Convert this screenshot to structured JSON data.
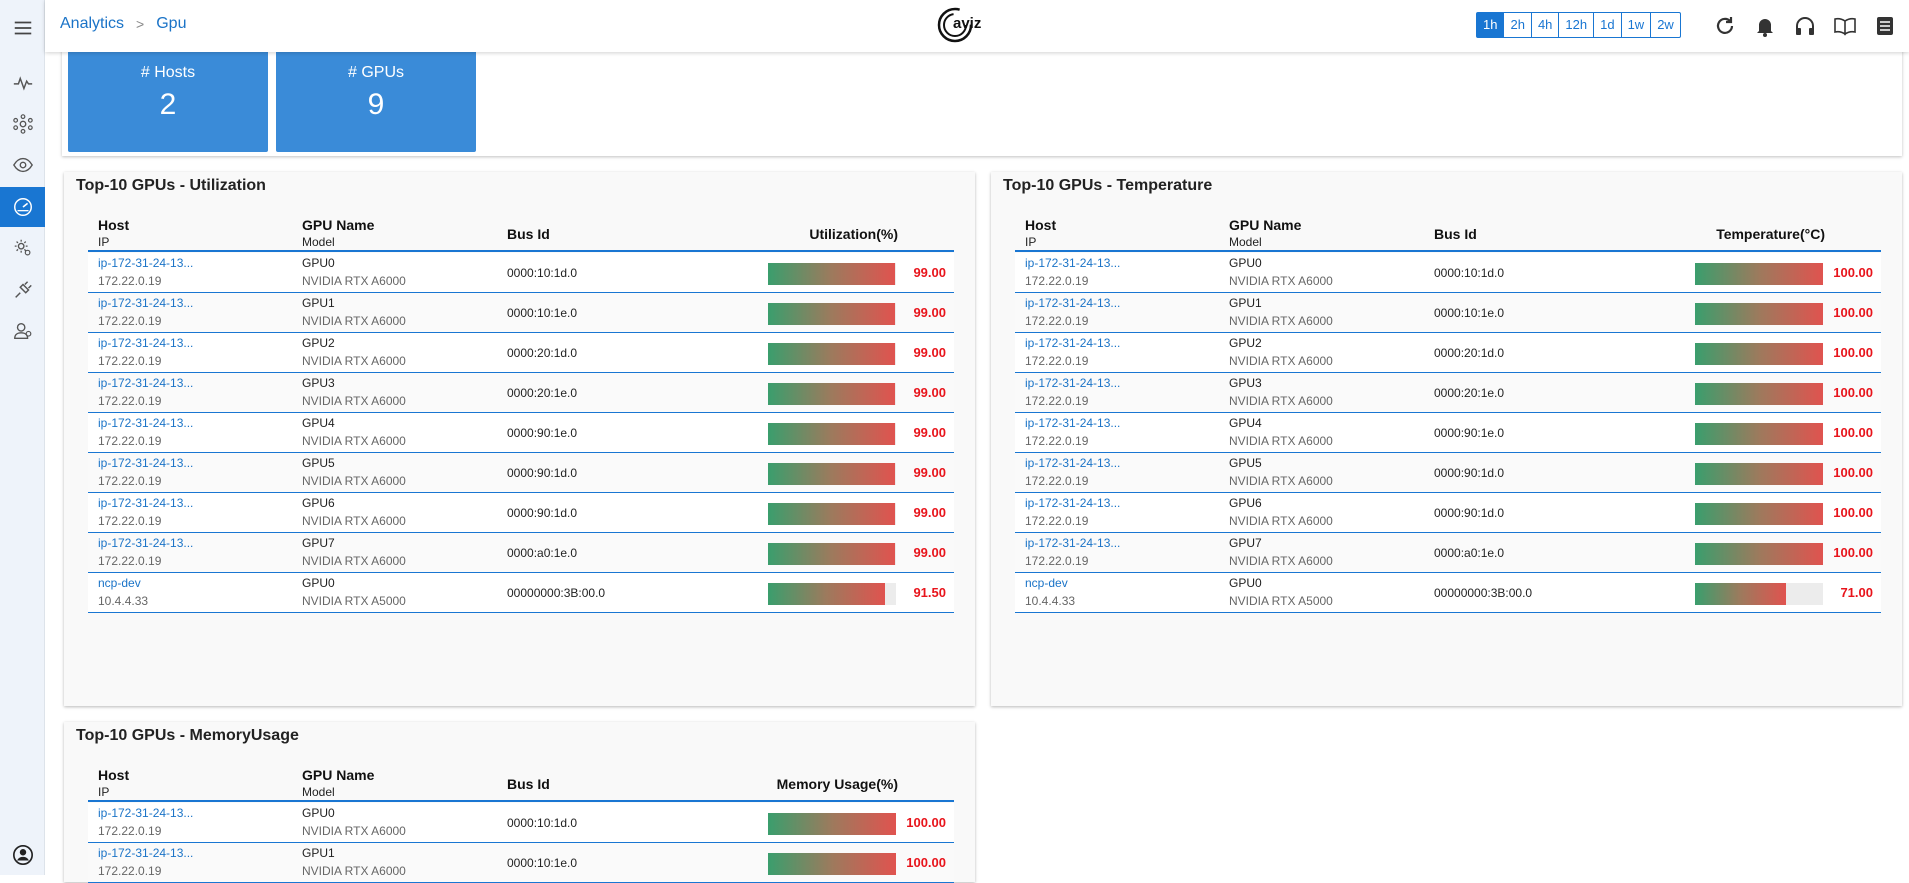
{
  "breadcrumb": {
    "parent": "Analytics",
    "separator": ">",
    "current": "Gpu"
  },
  "logo_text": "aviz",
  "time_ranges": [
    {
      "label": "1h",
      "selected": true
    },
    {
      "label": "2h",
      "selected": false
    },
    {
      "label": "4h",
      "selected": false
    },
    {
      "label": "12h",
      "selected": false
    },
    {
      "label": "1d",
      "selected": false
    },
    {
      "label": "1w",
      "selected": false
    },
    {
      "label": "2w",
      "selected": false
    }
  ],
  "header_icons": [
    "refresh-icon",
    "bell-icon",
    "headphones-icon",
    "book-icon",
    "document-icon"
  ],
  "sidebar_icons": [
    "menu-icon",
    "pulse-icon",
    "network-icon",
    "eye-icon",
    "dashboard-icon",
    "settings-icon",
    "plug-icon",
    "users-icon",
    "account-icon"
  ],
  "stats": [
    {
      "label": "# Hosts",
      "value": "2"
    },
    {
      "label": "# GPUs",
      "value": "9"
    }
  ],
  "columns": {
    "host": "Host",
    "ip": "IP",
    "gpu_name": "GPU Name",
    "model": "Model",
    "bus_id": "Bus Id"
  },
  "colors": {
    "accent": "#1976d2",
    "stat_bg": "#3a8bd8",
    "value_red": "#e8141b"
  },
  "tables": [
    {
      "title": "Top-10 GPUs - Utilization",
      "metric_label": "Utilization(%)",
      "rows": [
        {
          "host": "ip-172-31-24-13...",
          "ip": "172.22.0.19",
          "gpu": "GPU0",
          "model": "NVIDIA RTX A6000",
          "bus": "0000:10:1d.0",
          "value": "99.00",
          "level": 0.99
        },
        {
          "host": "ip-172-31-24-13...",
          "ip": "172.22.0.19",
          "gpu": "GPU1",
          "model": "NVIDIA RTX A6000",
          "bus": "0000:10:1e.0",
          "value": "99.00",
          "level": 0.99
        },
        {
          "host": "ip-172-31-24-13...",
          "ip": "172.22.0.19",
          "gpu": "GPU2",
          "model": "NVIDIA RTX A6000",
          "bus": "0000:20:1d.0",
          "value": "99.00",
          "level": 0.99
        },
        {
          "host": "ip-172-31-24-13...",
          "ip": "172.22.0.19",
          "gpu": "GPU3",
          "model": "NVIDIA RTX A6000",
          "bus": "0000:20:1e.0",
          "value": "99.00",
          "level": 0.99
        },
        {
          "host": "ip-172-31-24-13...",
          "ip": "172.22.0.19",
          "gpu": "GPU4",
          "model": "NVIDIA RTX A6000",
          "bus": "0000:90:1e.0",
          "value": "99.00",
          "level": 0.99
        },
        {
          "host": "ip-172-31-24-13...",
          "ip": "172.22.0.19",
          "gpu": "GPU5",
          "model": "NVIDIA RTX A6000",
          "bus": "0000:90:1d.0",
          "value": "99.00",
          "level": 0.99
        },
        {
          "host": "ip-172-31-24-13...",
          "ip": "172.22.0.19",
          "gpu": "GPU6",
          "model": "NVIDIA RTX A6000",
          "bus": "0000:90:1d.0",
          "value": "99.00",
          "level": 0.99
        },
        {
          "host": "ip-172-31-24-13...",
          "ip": "172.22.0.19",
          "gpu": "GPU7",
          "model": "NVIDIA RTX A6000",
          "bus": "0000:a0:1e.0",
          "value": "99.00",
          "level": 0.99
        },
        {
          "host": "ncp-dev",
          "ip": "10.4.4.33",
          "gpu": "GPU0",
          "model": "NVIDIA RTX A5000",
          "bus": "00000000:3B:00.0",
          "value": "91.50",
          "level": 0.915
        }
      ]
    },
    {
      "title": "Top-10 GPUs - Temperature",
      "metric_label": "Temperature(°C)",
      "rows": [
        {
          "host": "ip-172-31-24-13...",
          "ip": "172.22.0.19",
          "gpu": "GPU0",
          "model": "NVIDIA RTX A6000",
          "bus": "0000:10:1d.0",
          "value": "100.00",
          "level": 1.0
        },
        {
          "host": "ip-172-31-24-13...",
          "ip": "172.22.0.19",
          "gpu": "GPU1",
          "model": "NVIDIA RTX A6000",
          "bus": "0000:10:1e.0",
          "value": "100.00",
          "level": 1.0
        },
        {
          "host": "ip-172-31-24-13...",
          "ip": "172.22.0.19",
          "gpu": "GPU2",
          "model": "NVIDIA RTX A6000",
          "bus": "0000:20:1d.0",
          "value": "100.00",
          "level": 1.0
        },
        {
          "host": "ip-172-31-24-13...",
          "ip": "172.22.0.19",
          "gpu": "GPU3",
          "model": "NVIDIA RTX A6000",
          "bus": "0000:20:1e.0",
          "value": "100.00",
          "level": 1.0
        },
        {
          "host": "ip-172-31-24-13...",
          "ip": "172.22.0.19",
          "gpu": "GPU4",
          "model": "NVIDIA RTX A6000",
          "bus": "0000:90:1e.0",
          "value": "100.00",
          "level": 1.0
        },
        {
          "host": "ip-172-31-24-13...",
          "ip": "172.22.0.19",
          "gpu": "GPU5",
          "model": "NVIDIA RTX A6000",
          "bus": "0000:90:1d.0",
          "value": "100.00",
          "level": 1.0
        },
        {
          "host": "ip-172-31-24-13...",
          "ip": "172.22.0.19",
          "gpu": "GPU6",
          "model": "NVIDIA RTX A6000",
          "bus": "0000:90:1d.0",
          "value": "100.00",
          "level": 1.0
        },
        {
          "host": "ip-172-31-24-13...",
          "ip": "172.22.0.19",
          "gpu": "GPU7",
          "model": "NVIDIA RTX A6000",
          "bus": "0000:a0:1e.0",
          "value": "100.00",
          "level": 1.0
        },
        {
          "host": "ncp-dev",
          "ip": "10.4.4.33",
          "gpu": "GPU0",
          "model": "NVIDIA RTX A5000",
          "bus": "00000000:3B:00.0",
          "value": "71.00",
          "level": 0.71
        }
      ]
    },
    {
      "title": "Top-10 GPUs - MemoryUsage",
      "metric_label": "Memory Usage(%)",
      "rows": [
        {
          "host": "ip-172-31-24-13...",
          "ip": "172.22.0.19",
          "gpu": "GPU0",
          "model": "NVIDIA RTX A6000",
          "bus": "0000:10:1d.0",
          "value": "100.00",
          "level": 1.0
        },
        {
          "host": "ip-172-31-24-13...",
          "ip": "172.22.0.19",
          "gpu": "GPU1",
          "model": "NVIDIA RTX A6000",
          "bus": "0000:10:1e.0",
          "value": "100.00",
          "level": 1.0
        }
      ]
    }
  ]
}
